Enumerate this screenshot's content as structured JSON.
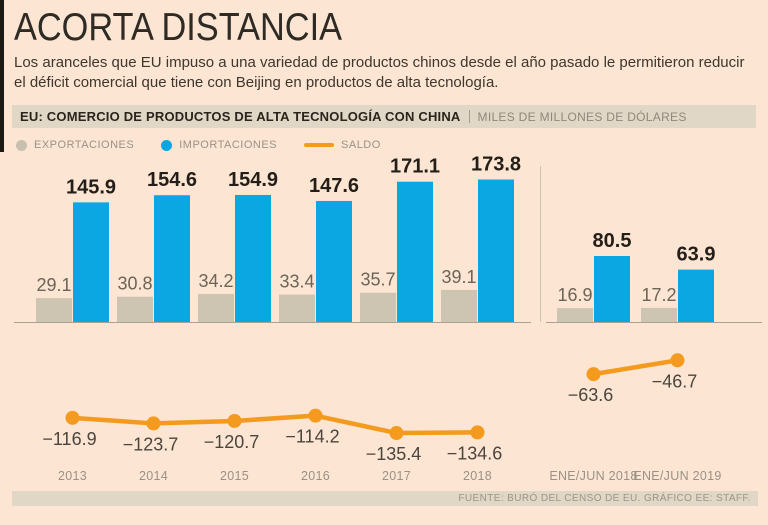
{
  "title": "ACORTA DISTANCIA",
  "subtitle": "Los aranceles que EU impuso a una variedad de productos chinos desde el año pasado le permitieron reducir el déficit comercial que tiene con Beijing en productos de alta tecnología.",
  "header_bar": {
    "title": "EU: COMERCIO DE PRODUCTOS DE ALTA TECNOLOGÍA CON CHINA",
    "units": "MILES DE MILLONES DE DÓLARES"
  },
  "legend": {
    "items": [
      {
        "label": "EXPORTACIONES",
        "swatch": "dot",
        "color": "#C8BFAE"
      },
      {
        "label": "IMPORTACIONES",
        "swatch": "dot",
        "color": "#0BA7E2"
      },
      {
        "label": "SALDO",
        "swatch": "line",
        "color": "#F49A1E"
      }
    ]
  },
  "colors": {
    "background": "#FCE5D2",
    "bar_exports": "#CDC4B1",
    "bar_imports": "#0BA7E2",
    "line_saldo": "#F49A1E",
    "panel_bar": "#E0D7C6",
    "axis": "#AAA192",
    "divider": "#CCC3B2"
  },
  "chart_data": {
    "type": "bar",
    "title": "EU: COMERCIO DE PRODUCTOS DE ALTA TECNOLOGÍA CON CHINA",
    "units": "MILES DE MILLONES DE DÓLARES",
    "categories": [
      "2013",
      "2014",
      "2015",
      "2016",
      "2017",
      "2018",
      "ENE/JUN 2018",
      "ENE/JUN 2019"
    ],
    "group_split_after_index": 5,
    "series": [
      {
        "name": "EXPORTACIONES",
        "type": "bar",
        "values": [
          29.1,
          30.8,
          34.2,
          33.4,
          35.7,
          39.1,
          16.9,
          17.2
        ]
      },
      {
        "name": "IMPORTACIONES",
        "type": "bar",
        "values": [
          145.9,
          154.6,
          154.9,
          147.6,
          171.1,
          173.8,
          80.5,
          63.9
        ]
      },
      {
        "name": "SALDO",
        "type": "line",
        "values": [
          -116.9,
          -123.7,
          -120.7,
          -114.2,
          -135.4,
          -134.6,
          -63.6,
          -46.7
        ]
      }
    ],
    "legend_position": "top-left",
    "grid": false,
    "ylim": [
      -140,
      180
    ]
  },
  "footer": {
    "source": "FUENTE: BURÓ DEL CENSO DE EU. GRÁFICO EE: STAFF."
  }
}
